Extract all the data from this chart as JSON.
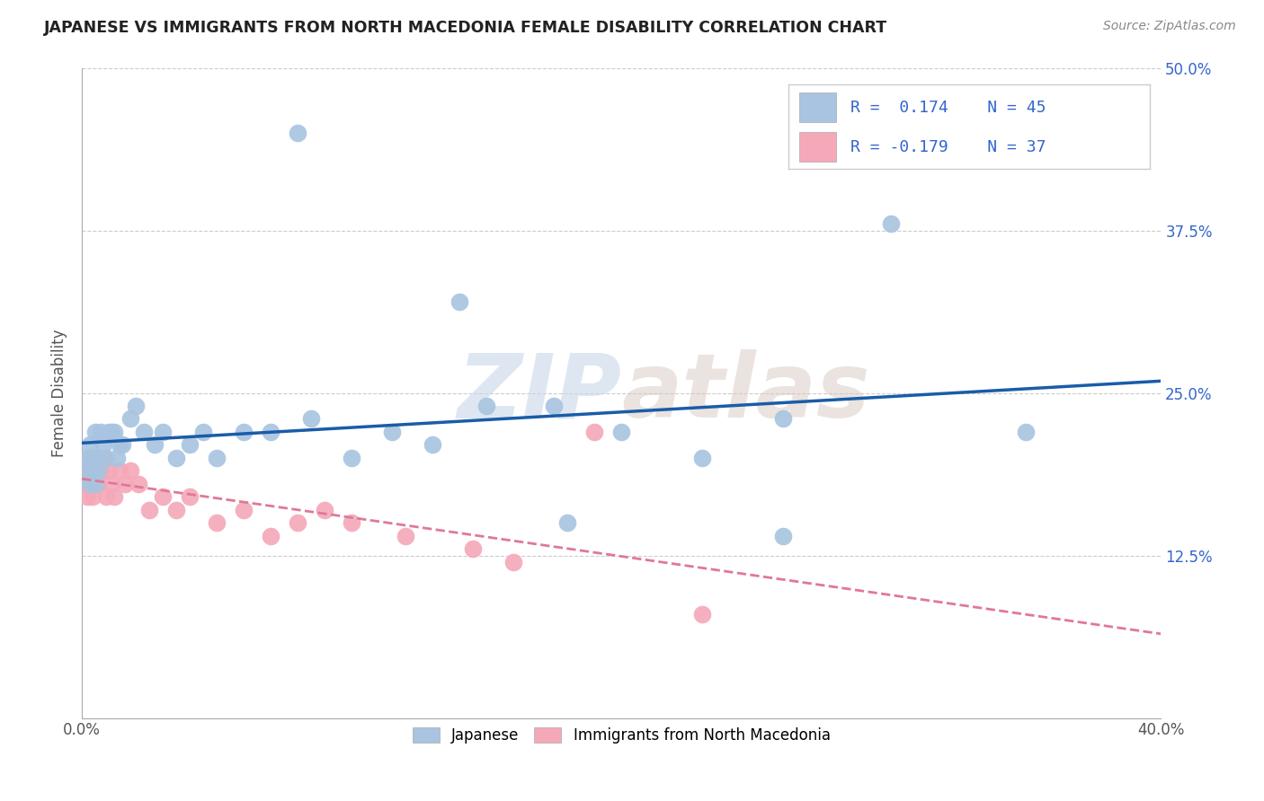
{
  "title": "JAPANESE VS IMMIGRANTS FROM NORTH MACEDONIA FEMALE DISABILITY CORRELATION CHART",
  "source": "Source: ZipAtlas.com",
  "ylabel": "Female Disability",
  "x_min": 0.0,
  "x_max": 0.4,
  "y_min": 0.0,
  "y_max": 0.5,
  "x_ticks": [
    0.0,
    0.1,
    0.2,
    0.3,
    0.4
  ],
  "y_ticks": [
    0.0,
    0.125,
    0.25,
    0.375,
    0.5
  ],
  "y_tick_labels": [
    "",
    "12.5%",
    "25.0%",
    "37.5%",
    "50.0%"
  ],
  "japanese_color": "#a8c4e0",
  "japanese_edge_color": "#7aaac8",
  "macedonian_color": "#f4a8b8",
  "macedonian_edge_color": "#e07898",
  "japanese_line_color": "#1a5ca8",
  "macedonian_line_color": "#e07898",
  "japanese_R": 0.174,
  "japanese_N": 45,
  "macedonian_R": -0.179,
  "macedonian_N": 37,
  "watermark_zip": "ZIP",
  "watermark_atlas": "atlas",
  "background_color": "#ffffff",
  "grid_color": "#cccccc",
  "japanese_scatter_x": [
    0.001,
    0.002,
    0.003,
    0.003,
    0.004,
    0.004,
    0.005,
    0.005,
    0.006,
    0.006,
    0.007,
    0.008,
    0.009,
    0.01,
    0.011,
    0.012,
    0.013,
    0.014,
    0.015,
    0.018,
    0.02,
    0.023,
    0.027,
    0.03,
    0.035,
    0.04,
    0.045,
    0.05,
    0.06,
    0.07,
    0.085,
    0.1,
    0.115,
    0.13,
    0.15,
    0.175,
    0.2,
    0.23,
    0.26,
    0.3,
    0.35,
    0.26,
    0.18,
    0.14,
    0.08
  ],
  "japanese_scatter_y": [
    0.19,
    0.2,
    0.18,
    0.21,
    0.19,
    0.2,
    0.22,
    0.18,
    0.2,
    0.19,
    0.22,
    0.21,
    0.2,
    0.22,
    0.22,
    0.22,
    0.2,
    0.21,
    0.21,
    0.23,
    0.24,
    0.22,
    0.21,
    0.22,
    0.2,
    0.21,
    0.22,
    0.2,
    0.22,
    0.22,
    0.23,
    0.2,
    0.22,
    0.21,
    0.24,
    0.24,
    0.22,
    0.2,
    0.23,
    0.38,
    0.22,
    0.14,
    0.15,
    0.32,
    0.45
  ],
  "macedonian_scatter_x": [
    0.001,
    0.001,
    0.002,
    0.002,
    0.003,
    0.003,
    0.004,
    0.004,
    0.005,
    0.005,
    0.006,
    0.006,
    0.007,
    0.008,
    0.009,
    0.01,
    0.011,
    0.012,
    0.014,
    0.016,
    0.018,
    0.021,
    0.025,
    0.03,
    0.035,
    0.04,
    0.05,
    0.06,
    0.07,
    0.08,
    0.09,
    0.1,
    0.12,
    0.145,
    0.16,
    0.19,
    0.23
  ],
  "macedonian_scatter_y": [
    0.18,
    0.19,
    0.17,
    0.2,
    0.19,
    0.18,
    0.2,
    0.17,
    0.19,
    0.18,
    0.2,
    0.18,
    0.19,
    0.2,
    0.17,
    0.19,
    0.18,
    0.17,
    0.19,
    0.18,
    0.19,
    0.18,
    0.16,
    0.17,
    0.16,
    0.17,
    0.15,
    0.16,
    0.14,
    0.15,
    0.16,
    0.15,
    0.14,
    0.13,
    0.12,
    0.22,
    0.08
  ],
  "legend_label_japanese": "Japanese",
  "legend_label_macedonian": "Immigrants from North Macedonia"
}
